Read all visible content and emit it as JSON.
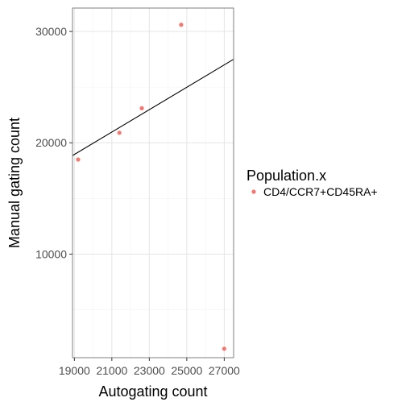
{
  "chart_data": {
    "type": "scatter",
    "xlabel": "Autogating count",
    "ylabel": "Manual gating count",
    "xlim": [
      18900,
      27500
    ],
    "ylim": [
      700,
      32100
    ],
    "x_ticks": [
      19000,
      21000,
      23000,
      25000,
      27000
    ],
    "x_tick_labels": [
      "19000",
      "21000",
      "23000",
      "25000",
      "27000"
    ],
    "y_ticks": [
      10000,
      20000,
      30000
    ],
    "y_tick_labels": [
      "10000",
      "20000",
      "30000"
    ],
    "grid": true,
    "legend": {
      "title": "Population.x",
      "position": "right",
      "entries": [
        {
          "label": "CD4/CCR7+CD45RA+",
          "color": "#F8766D"
        }
      ]
    },
    "series": [
      {
        "name": "CD4/CCR7+CD45RA+",
        "color": "#F8766D",
        "points": [
          {
            "x": 19200,
            "y": 18500
          },
          {
            "x": 21400,
            "y": 20900
          },
          {
            "x": 22600,
            "y": 23100
          },
          {
            "x": 24700,
            "y": 30600
          },
          {
            "x": 27000,
            "y": 1500
          }
        ]
      }
    ],
    "reference_line": {
      "x": [
        18900,
        27500
      ],
      "y": [
        18850,
        27500
      ],
      "color": "#000000"
    }
  }
}
